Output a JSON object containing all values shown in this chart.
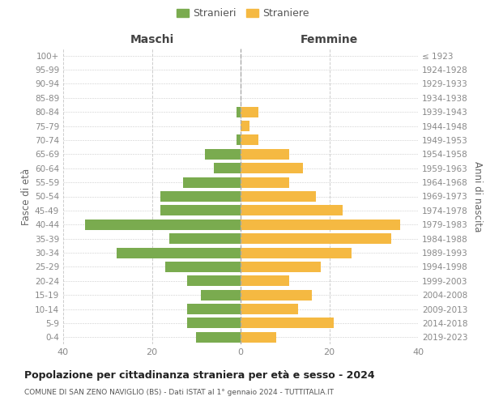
{
  "age_groups": [
    "0-4",
    "5-9",
    "10-14",
    "15-19",
    "20-24",
    "25-29",
    "30-34",
    "35-39",
    "40-44",
    "45-49",
    "50-54",
    "55-59",
    "60-64",
    "65-69",
    "70-74",
    "75-79",
    "80-84",
    "85-89",
    "90-94",
    "95-99",
    "100+"
  ],
  "birth_years": [
    "2019-2023",
    "2014-2018",
    "2009-2013",
    "2004-2008",
    "1999-2003",
    "1994-1998",
    "1989-1993",
    "1984-1988",
    "1979-1983",
    "1974-1978",
    "1969-1973",
    "1964-1968",
    "1959-1963",
    "1954-1958",
    "1949-1953",
    "1944-1948",
    "1939-1943",
    "1934-1938",
    "1929-1933",
    "1924-1928",
    "≤ 1923"
  ],
  "males": [
    10,
    12,
    12,
    9,
    12,
    17,
    28,
    16,
    35,
    18,
    18,
    13,
    6,
    8,
    1,
    0,
    1,
    0,
    0,
    0,
    0
  ],
  "females": [
    8,
    21,
    13,
    16,
    11,
    18,
    25,
    34,
    36,
    23,
    17,
    11,
    14,
    11,
    4,
    2,
    4,
    0,
    0,
    0,
    0
  ],
  "male_color": "#7aab4f",
  "female_color": "#f5b942",
  "background_color": "#ffffff",
  "grid_color": "#cccccc",
  "title": "Popolazione per cittadinanza straniera per età e sesso - 2024",
  "subtitle": "COMUNE DI SAN ZENO NAVIGLIO (BS) - Dati ISTAT al 1° gennaio 2024 - TUTTITALIA.IT",
  "xlabel_left": "Maschi",
  "xlabel_right": "Femmine",
  "ylabel_left": "Fasce di età",
  "ylabel_right": "Anni di nascita",
  "legend_males": "Stranieri",
  "legend_females": "Straniere",
  "xlim": 40,
  "bar_height": 0.75
}
